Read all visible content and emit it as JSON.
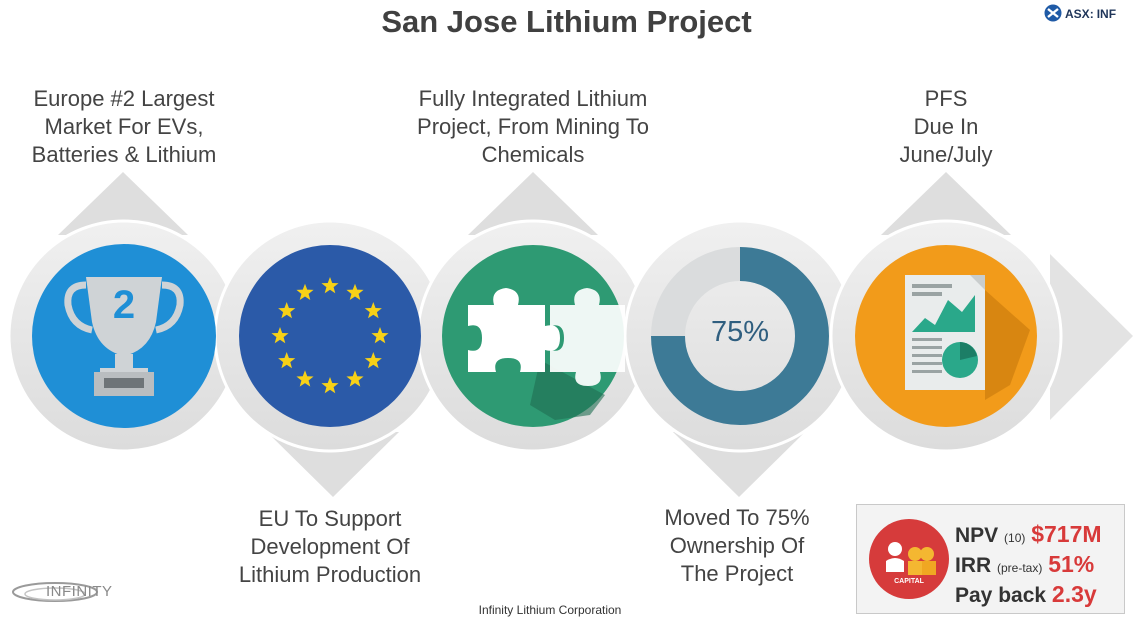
{
  "header": {
    "title": "San Jose Lithium Project",
    "ticker_exchange": "ASX",
    "ticker_separator": ":",
    "ticker_code": "INF"
  },
  "steps": [
    {
      "icon": "trophy-icon",
      "color": "#1f8fd6",
      "badge": "2",
      "label_lines": [
        "Europe #2 Largest",
        "Market For EVs,",
        "Batteries & Lithium"
      ]
    },
    {
      "icon": "eu-flag-icon",
      "color": "#2b5aa8",
      "label_lines": [
        "EU To Support",
        "Development Of",
        "Lithium Production"
      ]
    },
    {
      "icon": "puzzle-icon",
      "color": "#2e9a73",
      "label_lines": [
        "Fully Integrated Lithium",
        "Project, From Mining To",
        "Chemicals"
      ]
    },
    {
      "icon": "donut-chart-icon",
      "color": "#3d7a96",
      "ownership_fraction": 0.75,
      "percent_text": "75%",
      "label_lines": [
        "Moved To 75%",
        "Ownership Of",
        "The Project"
      ]
    },
    {
      "icon": "report-document-icon",
      "color": "#f29b1a",
      "label_lines": [
        "PFS",
        "Due In",
        "June/July"
      ]
    }
  ],
  "metrics": {
    "capital_label": "CAPITAL",
    "npv_label": "NPV",
    "npv_qualifier": "(10)",
    "npv_value": "$717M",
    "irr_label": "IRR",
    "irr_qualifier": "(pre-tax)",
    "irr_value": "51%",
    "payback_label": "Pay back",
    "payback_value": "2.3y",
    "value_color": "#d83a3a"
  },
  "footer": {
    "company": "Infinity Lithium Corporation",
    "logo_text": "INFINITY"
  }
}
